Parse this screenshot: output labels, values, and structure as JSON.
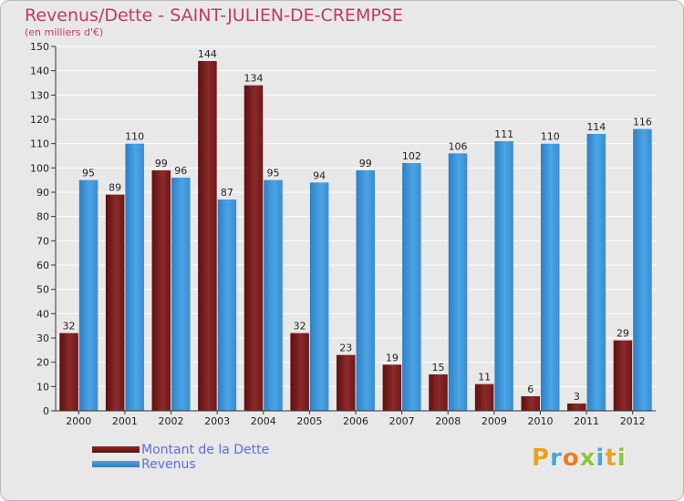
{
  "header": {
    "title": "Revenus/Dette - SAINT-JULIEN-DE-CREMPSE",
    "subtitle": "(en milliers d'€)"
  },
  "legend": {
    "items": [
      {
        "label": "Montant de la Dette",
        "color": "#7a1a1a"
      },
      {
        "label": "Revenus",
        "color": "#3f98dd"
      }
    ]
  },
  "logo": {
    "letters": [
      "P",
      "r",
      "o",
      "x",
      "i",
      "t",
      "i"
    ],
    "colors": [
      "#f0a020",
      "#4aa3df",
      "#f07a20",
      "#8cc63f",
      "#4aa3df",
      "#f0a020",
      "#8cc63f"
    ]
  },
  "colors": {
    "title": "#c0396a",
    "debt": "#7a1a1a",
    "revenue": "#3f98dd",
    "grid": "#ffffff",
    "axis_text": "#222222"
  },
  "chart_data": {
    "type": "bar",
    "title": "Revenus/Dette - SAINT-JULIEN-DE-CREMPSE",
    "ylabel": "(en milliers d'€)",
    "xlabel": "",
    "ylim": [
      0,
      150
    ],
    "yticks": [
      0,
      10,
      20,
      30,
      40,
      50,
      60,
      70,
      80,
      90,
      100,
      110,
      120,
      130,
      140,
      150
    ],
    "grid": true,
    "categories": [
      "2000",
      "2001",
      "2002",
      "2003",
      "2004",
      "2005",
      "2006",
      "2007",
      "2008",
      "2009",
      "2010",
      "2011",
      "2012"
    ],
    "series": [
      {
        "name": "Montant de la Dette",
        "values": [
          32,
          89,
          99,
          144,
          134,
          32,
          23,
          19,
          15,
          11,
          6,
          3,
          29
        ]
      },
      {
        "name": "Revenus",
        "values": [
          95,
          110,
          96,
          87,
          95,
          94,
          99,
          102,
          106,
          111,
          110,
          114,
          116
        ]
      }
    ]
  }
}
